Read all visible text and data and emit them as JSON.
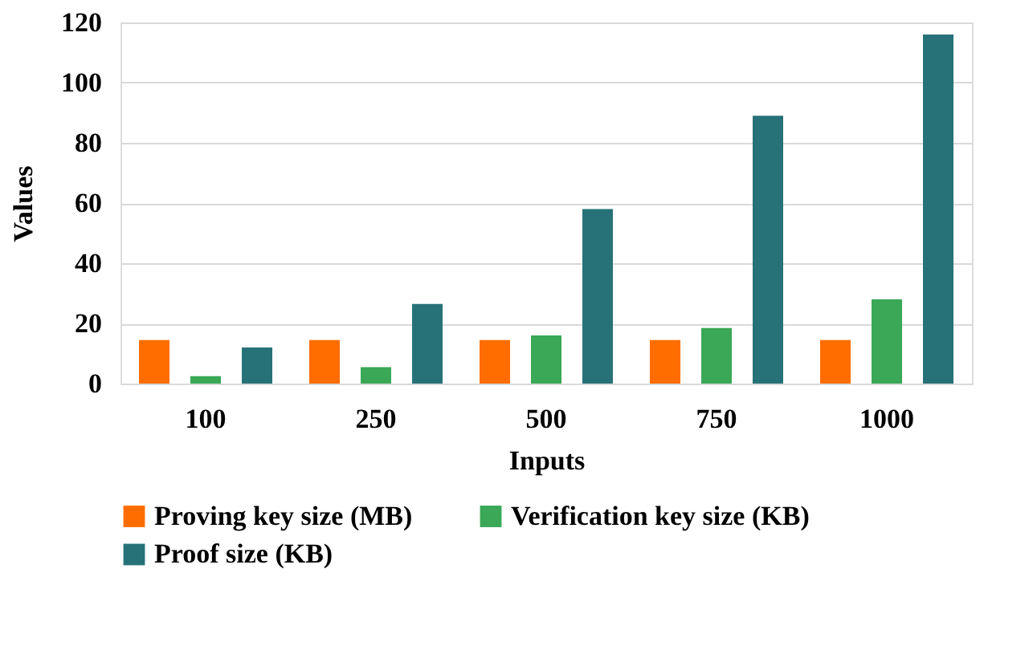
{
  "chart_data": {
    "type": "bar",
    "xlabel": "Inputs",
    "ylabel": "Values",
    "categories": [
      "100",
      "250",
      "500",
      "750",
      "1000"
    ],
    "series": [
      {
        "name": "Proving key size (MB)",
        "color": "#ff6d00",
        "values": [
          14.5,
          14.5,
          14.5,
          14.5,
          14.5
        ]
      },
      {
        "name": "Verification key size (KB)",
        "color": "#3aa856",
        "values": [
          2.5,
          5.5,
          16,
          18.5,
          28
        ]
      },
      {
        "name": "Proof size (KB)",
        "color": "#277278",
        "values": [
          12,
          26.5,
          58,
          89,
          116
        ]
      }
    ],
    "ylim": [
      0,
      120
    ],
    "yticks": [
      0,
      20,
      40,
      60,
      80,
      100,
      120
    ],
    "grid": "y",
    "legend": "bottom"
  }
}
